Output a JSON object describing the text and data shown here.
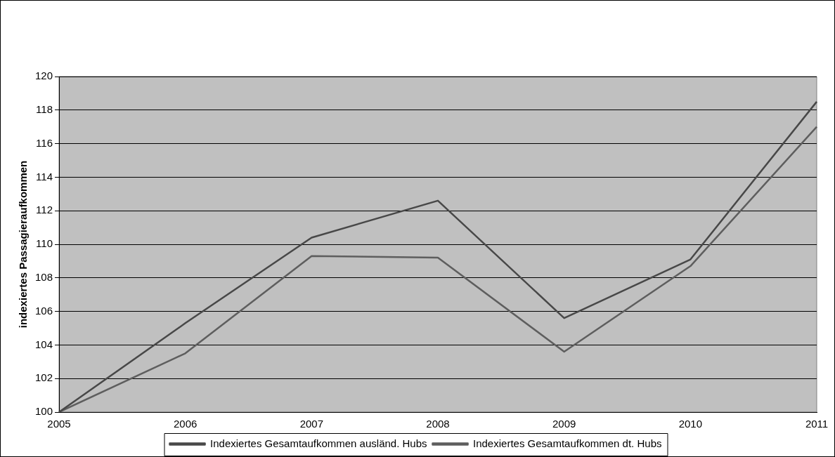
{
  "chart_data": {
    "type": "line",
    "ylabel": "indexiertes Passagieraufkommen",
    "categories": [
      "2005",
      "2006",
      "2007",
      "2008",
      "2009",
      "2010",
      "2011"
    ],
    "series": [
      {
        "name": "Indexiertes Gesamtaufkommen ausländ. Hubs",
        "color": "#484848",
        "values": [
          100,
          105.3,
          110.4,
          112.6,
          105.6,
          109.1,
          118.5
        ]
      },
      {
        "name": "Indexiertes Gesamtaufkommen dt. Hubs",
        "color": "#5e5e5e",
        "values": [
          100,
          103.5,
          109.3,
          109.2,
          103.6,
          108.7,
          117.0
        ]
      }
    ],
    "ylim": [
      100,
      120
    ],
    "yticks": [
      100,
      102,
      104,
      106,
      108,
      110,
      112,
      114,
      116,
      118,
      120
    ],
    "grid": "y",
    "legend": "bottom",
    "marker": "none",
    "line_style": "solid"
  }
}
